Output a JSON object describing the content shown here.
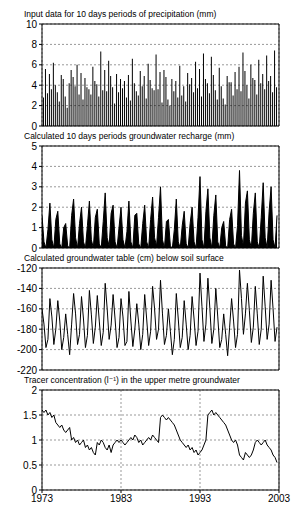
{
  "chart_data": [
    {
      "type": "bar",
      "title": "Input data for 10 days periods of precipitation (mm)",
      "color": "#000000",
      "grid": true,
      "tick_labels": "y",
      "xlim": [
        1973,
        2003
      ],
      "xticks": [
        1973,
        1983,
        1993,
        2003
      ],
      "ylim": [
        0,
        10
      ],
      "yticks": [
        0,
        2,
        4,
        6,
        8,
        10
      ],
      "x": [
        1973,
        1973.25,
        1973.5,
        1973.75,
        1974,
        1974.25,
        1974.5,
        1974.75,
        1975,
        1975.25,
        1975.5,
        1975.75,
        1976,
        1976.25,
        1976.5,
        1976.75,
        1977,
        1977.25,
        1977.5,
        1977.75,
        1978,
        1978.25,
        1978.5,
        1978.75,
        1979,
        1979.25,
        1979.5,
        1979.75,
        1980,
        1980.25,
        1980.5,
        1980.75,
        1981,
        1981.25,
        1981.5,
        1981.75,
        1982,
        1982.25,
        1982.5,
        1982.75,
        1983,
        1983.25,
        1983.5,
        1983.75,
        1984,
        1984.25,
        1984.5,
        1984.75,
        1985,
        1985.25,
        1985.5,
        1985.75,
        1986,
        1986.25,
        1986.5,
        1986.75,
        1987,
        1987.25,
        1987.5,
        1987.75,
        1988,
        1988.25,
        1988.5,
        1988.75,
        1989,
        1989.25,
        1989.5,
        1989.75,
        1990,
        1990.25,
        1990.5,
        1990.75,
        1991,
        1991.25,
        1991.5,
        1991.75,
        1992,
        1992.25,
        1992.5,
        1992.75,
        1993,
        1993.25,
        1993.5,
        1993.75,
        1994,
        1994.25,
        1994.5,
        1994.75,
        1995,
        1995.25,
        1995.5,
        1995.75,
        1996,
        1996.25,
        1996.5,
        1996.75,
        1997,
        1997.25,
        1997.5,
        1997.75,
        1998,
        1998.25,
        1998.5,
        1998.75,
        1999,
        1999.25,
        1999.5,
        1999.75,
        2000,
        2000.25,
        2000.5,
        2000.75,
        2001,
        2001.25,
        2001.5,
        2001.75,
        2002,
        2002.25,
        2002.5,
        2002.75
      ],
      "values": [
        4.5,
        2.8,
        5.6,
        3.2,
        5.1,
        3.6,
        6.2,
        4.0,
        3.3,
        2.4,
        5.0,
        4.6,
        2.9,
        1.8,
        4.2,
        5.5,
        4.8,
        3.9,
        6.0,
        3.1,
        5.2,
        2.6,
        4.7,
        3.8,
        3.6,
        3.1,
        5.8,
        4.4,
        4.1,
        2.9,
        7.3,
        3.5,
        5.5,
        3.4,
        6.4,
        4.9,
        3.8,
        2.2,
        5.1,
        3.3,
        4.6,
        3.7,
        4.4,
        2.8,
        5.0,
        2.5,
        6.6,
        4.2,
        3.4,
        3.0,
        5.4,
        3.9,
        4.9,
        2.7,
        6.1,
        4.5,
        3.7,
        3.5,
        7.0,
        3.6,
        5.3,
        2.3,
        5.5,
        4.8,
        2.6,
        2.0,
        4.6,
        3.4,
        4.4,
        2.8,
        5.9,
        3.0,
        3.9,
        2.4,
        5.2,
        4.1,
        4.7,
        3.3,
        6.3,
        3.7,
        5.6,
        2.9,
        7.1,
        4.6,
        4.2,
        3.2,
        6.8,
        5.0,
        3.5,
        2.6,
        5.7,
        3.9,
        2.7,
        2.1,
        4.9,
        4.3,
        4.3,
        3.0,
        5.3,
        3.6,
        5.8,
        3.4,
        7.2,
        5.4,
        4.0,
        2.7,
        6.0,
        4.7,
        4.5,
        3.1,
        6.5,
        4.2,
        5.1,
        3.6,
        6.9,
        4.4,
        4.9,
        3.3,
        7.4,
        3.8
      ]
    },
    {
      "type": "area",
      "title": "Calculated 10 days periods groundwater recharge (mm)",
      "color": "#000000",
      "grid": true,
      "tick_labels": "y",
      "xlim": [
        1973,
        2003
      ],
      "xticks": [
        1973,
        1983,
        1993,
        2003
      ],
      "ylim": [
        0,
        5
      ],
      "yticks": [
        0,
        1,
        2,
        3,
        4,
        5
      ],
      "x": [
        1973,
        1973.25,
        1973.5,
        1973.75,
        1974,
        1974.25,
        1974.5,
        1974.75,
        1975,
        1975.25,
        1975.5,
        1975.75,
        1976,
        1976.25,
        1976.5,
        1976.75,
        1977,
        1977.25,
        1977.5,
        1977.75,
        1978,
        1978.25,
        1978.5,
        1978.75,
        1979,
        1979.25,
        1979.5,
        1979.75,
        1980,
        1980.25,
        1980.5,
        1980.75,
        1981,
        1981.25,
        1981.5,
        1981.75,
        1982,
        1982.25,
        1982.5,
        1982.75,
        1983,
        1983.25,
        1983.5,
        1983.75,
        1984,
        1984.25,
        1984.5,
        1984.75,
        1985,
        1985.25,
        1985.5,
        1985.75,
        1986,
        1986.25,
        1986.5,
        1986.75,
        1987,
        1987.25,
        1987.5,
        1987.75,
        1988,
        1988.25,
        1988.5,
        1988.75,
        1989,
        1989.25,
        1989.5,
        1989.75,
        1990,
        1990.25,
        1990.5,
        1990.75,
        1991,
        1991.25,
        1991.5,
        1991.75,
        1992,
        1992.25,
        1992.5,
        1992.75,
        1993,
        1993.25,
        1993.5,
        1993.75,
        1994,
        1994.25,
        1994.5,
        1994.75,
        1995,
        1995.25,
        1995.5,
        1995.75,
        1996,
        1996.25,
        1996.5,
        1996.75,
        1997,
        1997.25,
        1997.5,
        1997.75,
        1998,
        1998.25,
        1998.5,
        1998.75,
        1999,
        1999.25,
        1999.5,
        1999.75,
        2000,
        2000.25,
        2000.5,
        2000.75,
        2001,
        2001.25,
        2001.5,
        2001.75,
        2002,
        2002.25,
        2002.5,
        2002.75
      ],
      "values": [
        1.6,
        0.3,
        0,
        0.9,
        2.2,
        0.4,
        0,
        1.4,
        1.8,
        0.2,
        0,
        1.0,
        1.2,
        0.1,
        0,
        1.6,
        2.4,
        0.5,
        0,
        1.2,
        2.0,
        0.3,
        0,
        1.1,
        2.3,
        0.4,
        0,
        1.5,
        1.9,
        0.2,
        0,
        1.3,
        2.7,
        0.5,
        0.1,
        1.7,
        2.1,
        0.3,
        0,
        1.0,
        2.0,
        0.4,
        0,
        0.8,
        2.3,
        0.3,
        0,
        1.6,
        1.7,
        0.2,
        0,
        1.2,
        2.1,
        0.3,
        0,
        1.4,
        2.5,
        0.5,
        0.1,
        1.5,
        3.0,
        0.4,
        0,
        1.3,
        1.4,
        0.1,
        0,
        0.9,
        2.4,
        0.3,
        0,
        1.1,
        1.8,
        0.2,
        0,
        1.2,
        2.0,
        0.3,
        0,
        1.5,
        3.5,
        0.4,
        0,
        1.8,
        2.9,
        0.5,
        0,
        1.6,
        2.6,
        0.3,
        0,
        1.0,
        1.3,
        0.1,
        0,
        1.4,
        1.9,
        0.2,
        0,
        1.1,
        3.8,
        0.6,
        0.1,
        2.2,
        2.8,
        0.4,
        0,
        1.7,
        2.7,
        0.3,
        0,
        1.5,
        3.2,
        0.5,
        0,
        1.8,
        3.0,
        0.4,
        0,
        1.6
      ]
    },
    {
      "type": "line",
      "title": "Calculated groundwater table (cm) below soil surface",
      "color": "#000000",
      "grid": true,
      "tick_labels": "y",
      "xlim": [
        1973,
        2003
      ],
      "xticks": [
        1973,
        1983,
        1993,
        2003
      ],
      "ylim": [
        -220,
        -120
      ],
      "yticks": [
        -220,
        -200,
        -180,
        -160,
        -140,
        -120
      ],
      "x": [
        1973,
        1973.25,
        1973.5,
        1973.75,
        1974,
        1974.25,
        1974.5,
        1974.75,
        1975,
        1975.25,
        1975.5,
        1975.75,
        1976,
        1976.25,
        1976.5,
        1976.75,
        1977,
        1977.25,
        1977.5,
        1977.75,
        1978,
        1978.25,
        1978.5,
        1978.75,
        1979,
        1979.25,
        1979.5,
        1979.75,
        1980,
        1980.25,
        1980.5,
        1980.75,
        1981,
        1981.25,
        1981.5,
        1981.75,
        1982,
        1982.25,
        1982.5,
        1982.75,
        1983,
        1983.25,
        1983.5,
        1983.75,
        1984,
        1984.25,
        1984.5,
        1984.75,
        1985,
        1985.25,
        1985.5,
        1985.75,
        1986,
        1986.25,
        1986.5,
        1986.75,
        1987,
        1987.25,
        1987.5,
        1987.75,
        1988,
        1988.25,
        1988.5,
        1988.75,
        1989,
        1989.25,
        1989.5,
        1989.75,
        1990,
        1990.25,
        1990.5,
        1990.75,
        1991,
        1991.25,
        1991.5,
        1991.75,
        1992,
        1992.25,
        1992.5,
        1992.75,
        1993,
        1993.25,
        1993.5,
        1993.75,
        1994,
        1994.25,
        1994.5,
        1994.75,
        1995,
        1995.25,
        1995.5,
        1995.75,
        1996,
        1996.25,
        1996.5,
        1996.75,
        1997,
        1997.25,
        1997.5,
        1997.75,
        1998,
        1998.25,
        1998.5,
        1998.75,
        1999,
        1999.25,
        1999.5,
        1999.75,
        2000,
        2000.25,
        2000.5,
        2000.75,
        2001,
        2001.25,
        2001.5,
        2001.75,
        2002,
        2002.25,
        2002.5,
        2002.75
      ],
      "values": [
        -160,
        -175,
        -198,
        -190,
        -150,
        -168,
        -195,
        -180,
        -152,
        -172,
        -200,
        -188,
        -165,
        -185,
        -205,
        -175,
        -145,
        -165,
        -195,
        -185,
        -148,
        -170,
        -198,
        -186,
        -142,
        -166,
        -194,
        -178,
        -147,
        -172,
        -196,
        -183,
        -135,
        -160,
        -190,
        -176,
        -146,
        -170,
        -198,
        -188,
        -150,
        -168,
        -196,
        -192,
        -143,
        -172,
        -197,
        -180,
        -155,
        -175,
        -200,
        -185,
        -146,
        -170,
        -196,
        -182,
        -138,
        -160,
        -190,
        -180,
        -132,
        -165,
        -195,
        -186,
        -160,
        -182,
        -205,
        -190,
        -145,
        -170,
        -198,
        -188,
        -152,
        -175,
        -200,
        -186,
        -148,
        -170,
        -196,
        -182,
        -125,
        -158,
        -192,
        -175,
        -130,
        -160,
        -194,
        -180,
        -140,
        -168,
        -198,
        -190,
        -165,
        -185,
        -206,
        -178,
        -150,
        -172,
        -198,
        -185,
        -122,
        -150,
        -185,
        -165,
        -135,
        -162,
        -193,
        -178,
        -138,
        -165,
        -195,
        -180,
        -128,
        -158,
        -190,
        -175,
        -132,
        -160,
        -192,
        -178
      ]
    },
    {
      "type": "line",
      "title": "Tracer concentration (l⁻¹) in the upper metre groundwater",
      "color": "#000000",
      "grid": true,
      "xlim": [
        1973,
        2003
      ],
      "xticks": [
        1973,
        1983,
        1993,
        2003
      ],
      "ylim": [
        0,
        2
      ],
      "yticks": [
        0,
        0.5,
        1,
        1.5,
        2
      ],
      "x": [
        1973,
        1973.25,
        1973.5,
        1973.75,
        1974,
        1974.25,
        1974.5,
        1974.75,
        1975,
        1975.25,
        1975.5,
        1975.75,
        1976,
        1976.25,
        1976.5,
        1976.75,
        1977,
        1977.25,
        1977.5,
        1977.75,
        1978,
        1978.25,
        1978.5,
        1978.75,
        1979,
        1979.25,
        1979.5,
        1979.75,
        1980,
        1980.25,
        1980.5,
        1980.75,
        1981,
        1981.25,
        1981.5,
        1981.75,
        1982,
        1982.25,
        1982.5,
        1982.75,
        1983,
        1983.25,
        1983.5,
        1983.75,
        1984,
        1984.25,
        1984.5,
        1984.75,
        1985,
        1985.25,
        1985.5,
        1985.75,
        1986,
        1986.25,
        1986.5,
        1986.75,
        1987,
        1987.25,
        1987.5,
        1987.75,
        1988,
        1988.25,
        1988.5,
        1988.75,
        1989,
        1989.25,
        1989.5,
        1989.75,
        1990,
        1990.25,
        1990.5,
        1990.75,
        1991,
        1991.25,
        1991.5,
        1991.75,
        1992,
        1992.25,
        1992.5,
        1992.75,
        1993,
        1993.25,
        1993.5,
        1993.75,
        1994,
        1994.25,
        1994.5,
        1994.75,
        1995,
        1995.25,
        1995.5,
        1995.75,
        1996,
        1996.25,
        1996.5,
        1996.75,
        1997,
        1997.25,
        1997.5,
        1997.75,
        1998,
        1998.25,
        1998.5,
        1998.75,
        1999,
        1999.25,
        1999.5,
        1999.75,
        2000,
        2000.25,
        2000.5,
        2000.75,
        2001,
        2001.25,
        2001.5,
        2001.75,
        2002,
        2002.25,
        2002.5,
        2002.75
      ],
      "values": [
        1.6,
        1.55,
        1.6,
        1.5,
        1.55,
        1.45,
        1.5,
        1.35,
        1.3,
        1.25,
        1.3,
        1.2,
        1.15,
        1.2,
        1.25,
        1.0,
        1.05,
        0.95,
        1.0,
        0.9,
        0.95,
        1.0,
        0.85,
        0.9,
        0.8,
        0.85,
        0.75,
        0.7,
        0.95,
        0.9,
        1.0,
        0.95,
        0.85,
        0.8,
        0.9,
        0.75,
        0.9,
        0.95,
        1.0,
        0.95,
        1.0,
        0.95,
        0.9,
        0.95,
        1.0,
        1.05,
        1.0,
        1.1,
        1.05,
        0.95,
        1.0,
        0.9,
        0.95,
        1.0,
        1.05,
        1.0,
        1.1,
        1.05,
        1.0,
        0.95,
        1.45,
        1.5,
        1.45,
        1.4,
        1.45,
        1.4,
        1.35,
        1.3,
        1.2,
        1.1,
        1.0,
        0.95,
        0.9,
        0.85,
        0.9,
        0.8,
        0.85,
        0.75,
        0.8,
        0.7,
        0.75,
        0.8,
        0.9,
        1.0,
        1.5,
        1.55,
        1.6,
        1.5,
        1.55,
        1.5,
        1.45,
        1.4,
        1.35,
        1.3,
        1.2,
        1.1,
        1.0,
        0.95,
        1.0,
        0.9,
        0.7,
        0.65,
        0.6,
        0.75,
        0.7,
        0.65,
        0.7,
        0.8,
        0.95,
        1.0,
        0.95,
        0.9,
        0.95,
        1.0,
        0.9,
        0.85,
        0.8,
        0.7,
        0.65,
        0.55
      ]
    }
  ]
}
